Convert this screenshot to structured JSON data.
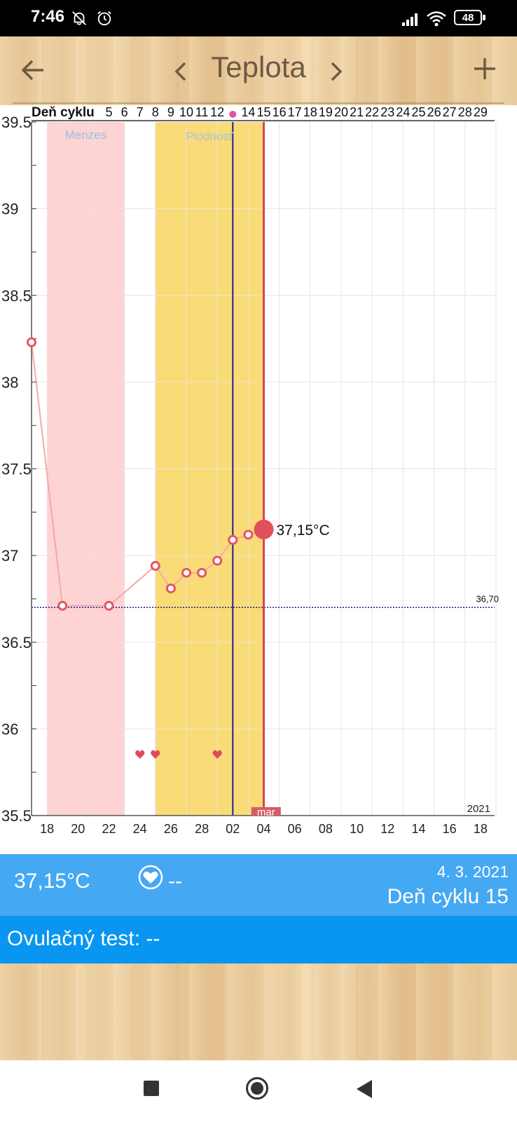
{
  "status": {
    "time": "7:46",
    "battery": "48"
  },
  "appbar": {
    "title": "Teplota"
  },
  "chart_data": {
    "type": "line",
    "ylim": [
      35.5,
      39.5
    ],
    "yticks": [
      35.5,
      36,
      36.5,
      37,
      37.5,
      38,
      38.5,
      39,
      39.5
    ],
    "ytick_labels": [
      "35.5",
      "36",
      "36.5",
      "37",
      "37.5",
      "38",
      "38.5",
      "39",
      "39.5"
    ],
    "cycle_label": "Deň cyklu",
    "cycle_days": [
      "5",
      "6",
      "7",
      "8",
      "9",
      "10",
      "11",
      "12",
      "",
      "14",
      "15",
      "16",
      "17",
      "18",
      "19",
      "20",
      "21",
      "22",
      "23",
      "24",
      "25",
      "26",
      "27",
      "28",
      "29"
    ],
    "date_ticks": [
      "18",
      "20",
      "22",
      "24",
      "26",
      "28",
      "02",
      "04",
      "06",
      "08",
      "10",
      "12",
      "14",
      "16",
      "18"
    ],
    "year_label": "2021",
    "month_label": "mar",
    "menzes_label": "Menzes",
    "plodnost_label": "Plodnosť",
    "baseline": 36.7,
    "baseline_label": "36,70",
    "highlight_label": "37,15°C",
    "series": [
      {
        "values": [
          {
            "x": 0,
            "y": 38.23
          },
          {
            "x": 2,
            "y": 36.71
          },
          {
            "x": 5,
            "y": 36.71
          },
          {
            "x": 8,
            "y": 36.94
          },
          {
            "x": 9,
            "y": 36.81
          },
          {
            "x": 10,
            "y": 36.9
          },
          {
            "x": 11,
            "y": 36.9
          },
          {
            "x": 12,
            "y": 36.97
          },
          {
            "x": 13,
            "y": 37.09
          },
          {
            "x": 14,
            "y": 37.12
          },
          {
            "x": 15,
            "y": 37.15
          }
        ]
      }
    ],
    "hearts_x": [
      7,
      8,
      12
    ],
    "menzes_range": [
      1,
      6
    ],
    "plodnost_range": [
      8,
      15
    ],
    "ovulation_x": 13,
    "current_x": 15
  },
  "bar1": {
    "temp": "37,15°C",
    "heart_value": "--",
    "date": "4. 3. 2021",
    "cycle_day": "Deň cyklu 15"
  },
  "bar2": {
    "ovulation_test": "Ovulačný test: --"
  }
}
